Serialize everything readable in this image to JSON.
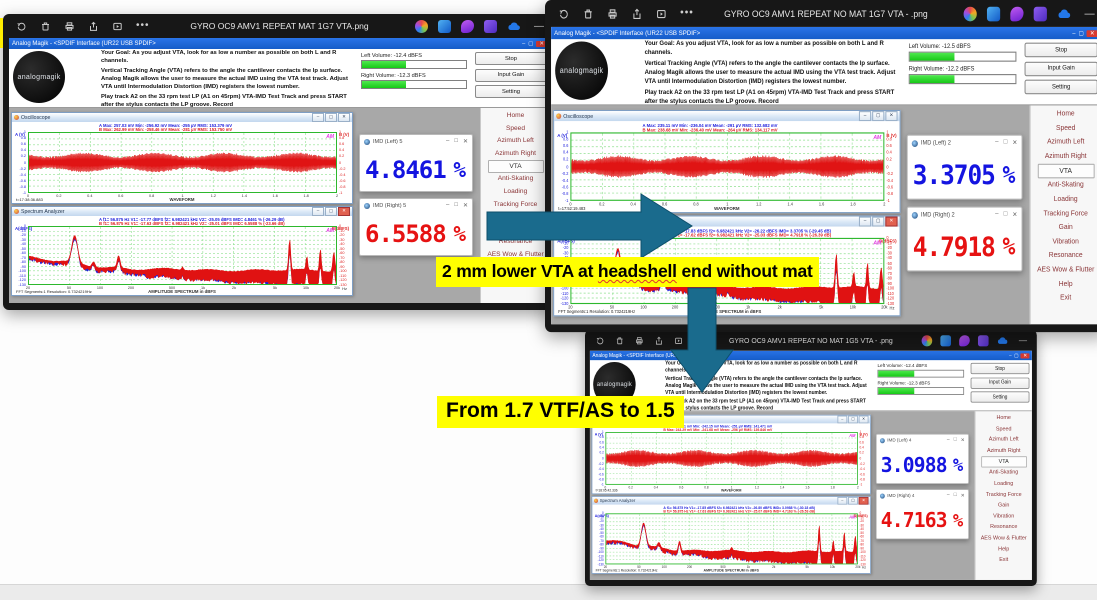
{
  "photos_toolbar": {
    "icons_left": [
      "rotate-icon",
      "delete-icon",
      "print-icon",
      "share-icon",
      "slideshow-icon",
      "more-icon"
    ],
    "more_label": "•••",
    "icons_right": [
      "color-wheel-icon",
      "blue-app-icon",
      "purple-flame-icon",
      "purple-app-icon",
      "cloud-icon"
    ],
    "minimize_label": "—"
  },
  "shared": {
    "app_titlebar": "Analog Magik    -    <SPDIF Interface (UR22 USB SPDIF>",
    "logo_text": "analogmagik",
    "goal": "Your Goal: As you adjust VTA, look for as low a number as possible on both L and R channels.",
    "para2": "Vertical Tracking Angle (VTA) refers to the angle the cantilever contacts the lp surface.   Analog Magik allows the user to measure the actual IMD using the VTA test track.  Adjust VTA until Intermodulation Distortion (IMD) registers the lowest number.",
    "para3": "Play track A2 on the 33 rpm test LP (A1 on 45rpm) VTA-IMD Test Track and press START after the stylus contacts the LP groove.   Record",
    "buttons": {
      "stop": "Stop",
      "input_gain": "Input Gain",
      "setting": "Setting"
    },
    "menu": [
      "Home",
      "Speed",
      "Azimuth Left",
      "Azimuth Right",
      "VTA",
      "Anti-Skating",
      "Loading",
      "Tracking Force",
      "Gain",
      "Vibration",
      "Resonance",
      "AES Wow & Flutter",
      "Help",
      "Exit"
    ],
    "selected_menu": "VTA",
    "osc_title": "Oscilloscope",
    "spec_title": "Spectrum Analyzer",
    "osc_ylabel_a": "A (V)",
    "osc_ylabel_b": "B (V)",
    "spec_ylabel_a": "A(dBFS)",
    "spec_ylabel_b": "B(dBFS)",
    "waveform_label": "WAVEFORM",
    "spectrum_label": "AMPLITUDE SPECTRUM in dBFS",
    "spec_footer": "FFT Segments:1     Resolution: 0.7324219Hz",
    "hz": "Hz",
    "brand": "AM",
    "axes": {
      "osc_y": [
        "1",
        "0.8",
        "0.6",
        "0.4",
        "0.2",
        "0",
        "-0.2",
        "-0.4",
        "-0.6",
        "-0.8",
        "-1"
      ],
      "osc_x": [
        "0",
        "0.2",
        "0.4",
        "0.6",
        "0.8",
        "1",
        "1.2",
        "1.4",
        "1.6",
        "1.8",
        "2"
      ],
      "spec_y": [
        "0",
        "-10",
        "-20",
        "-30",
        "-40",
        "-50",
        "-60",
        "-70",
        "-80",
        "-90",
        "-100",
        "-110",
        "-120",
        "-130"
      ],
      "spec_x": [
        "20",
        "50",
        "100",
        "200",
        "500",
        "1k",
        "2k",
        "5k",
        "10k",
        "20k"
      ]
    }
  },
  "windows": [
    {
      "title": "GYRO OC9 AMV1 REPEAT MAT 1G7 VTA.png",
      "left_volume": "Left Volume:   -12.4 dBFS",
      "right_volume": "Right Volume:   -12.3 dBFS",
      "osc_stats_a": "A  Max:  257.03 mV   Min:  -256.92 mV   Mean:    -255 µV   RMS:  153.379 mV",
      "osc_stats_b": "B  Max:  262.99 mV   Min:  -258.46 mV   Mean:    -281 µV   RMS:  153.750 mV",
      "osc_time": "t=17:38:36.883",
      "spec_stats_a": "A  f1=  56.875 Hz  V1=  -17.77 dBFS  f2=  6.982421 kHz  V2=  -25.05 dBFS  IMD=  4.8461 %   (-26.29 dB)",
      "spec_stats_b": "B  f1=  56.875 Hz  V1=  -17.63 dBFS  f2=  6.982421 kHz  V2=  -25.01 dBFS  IMD=  6.5588 %   (-23.66 dB)",
      "imd_left_title": "IMD (Left)  5",
      "imd_left_value": "4.8461",
      "imd_left_unit": "%",
      "imd_right_title": "IMD (Right)  5",
      "imd_right_value": "6.5588",
      "imd_right_unit": "%"
    },
    {
      "title": "GYRO OC9 AMV1 REPEAT NO MAT 1G7 VTA - .png",
      "left_volume": "Left Volume:   -12.5 dBFS",
      "right_volume": "Right Volume:   -12.2 dBFS",
      "osc_stats_a": "A  Max:  235.11 mV   Min:  -236.04 mV   Mean:    -291 µV   RMS:  132.682 mV",
      "osc_stats_b": "B  Max:  238.68 mV   Min:  -236.40 mV   Mean:    -264 µV   RMS:  134.117 mV",
      "osc_time": "t=17:52:19.483",
      "spec_stats_a": "A  f1=  56.875 Hz  V1=  -17.83 dBFS  f2=  6.982421 kHz  V2=  -26.22 dBFS  IMD=  3.3705 %   (-29.45 dB)",
      "spec_stats_b": "B  f1=  56.875 Hz  V1=  -17.62 dBFS  f2=  6.982421 kHz  V2=  -25.03 dBFS  IMD=  4.7918 %   (-26.39 dB)",
      "imd_left_title": "IMD (Left)  2",
      "imd_left_value": "3.3705",
      "imd_left_unit": "%",
      "imd_right_title": "IMD (Right)  2",
      "imd_right_value": "4.7918",
      "imd_right_unit": "%"
    },
    {
      "title": "GYRO OC9 AMV1 REPEAT NO MAT 1G5 VTA - .png",
      "left_volume": "Left Volume:   -12.4 dBFS",
      "right_volume": "Right Volume:   -12.3 dBFS",
      "osc_stats_a": "A  Max:  240.31 mV   Min:  -242.15 mV   Mean:    -251 µV   RMS:  141.471 mV",
      "osc_stats_b": "B  Max:  243.29 mV   Min:  -241.68 mV   Mean:    -256 µV   RMS:  139.846 mV",
      "osc_time": "t=18:05:42.336",
      "spec_stats_a": "A  f1=  56.875 Hz  V1=  -17.85 dBFS  f2=  6.982421 kHz  V2=  -26.80 dBFS  IMD=  3.0988 %   (-30.18 dB)",
      "spec_stats_b": "B  f1=  56.875 Hz  V1=  -17.63 dBFS  f2=  6.982421 kHz  V2=  -25.07 dBFS  IMD=  4.7163 %   (-26.53 dB)",
      "imd_left_title": "IMD (Left)  4",
      "imd_left_value": "3.0988",
      "imd_left_unit": "%",
      "imd_right_title": "IMD (Right)  4",
      "imd_right_value": "4.7163",
      "imd_right_unit": "%"
    }
  ],
  "annotations": {
    "note1_pre": "2 mm lower  VTA at ",
    "note1_word": "headshell",
    "note1_post": " end without mat",
    "note2": "From 1.7 VTF/AS to 1.5"
  },
  "colors": {
    "arrow": "#1a6b8d",
    "highlight": "#ffff00",
    "imd_blue": "#1414e0",
    "imd_red": "#e61212",
    "volume_green": "#2bd42b",
    "titlebar_blue": "#1b66d6",
    "menu_text": "#8a3537"
  }
}
